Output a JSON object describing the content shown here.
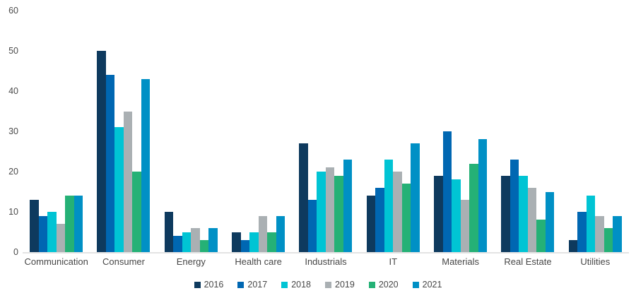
{
  "chart_data": {
    "type": "bar",
    "title": "",
    "xlabel": "",
    "ylabel": "",
    "categories": [
      "Communication",
      "Consumer",
      "Energy",
      "Health care",
      "Industrials",
      "IT",
      "Materials",
      "Real Estate",
      "Utilities"
    ],
    "series": [
      {
        "name": "2016",
        "color": "#0e3a5e",
        "values": [
          13,
          50,
          10,
          5,
          27,
          14,
          19,
          19,
          3
        ]
      },
      {
        "name": "2017",
        "color": "#0067b2",
        "values": [
          9,
          44,
          4,
          3,
          13,
          16,
          30,
          23,
          10
        ]
      },
      {
        "name": "2018",
        "color": "#00c4d4",
        "values": [
          10,
          31,
          5,
          5,
          20,
          23,
          18,
          19,
          14
        ]
      },
      {
        "name": "2019",
        "color": "#aab0b3",
        "values": [
          7,
          35,
          6,
          9,
          21,
          20,
          13,
          16,
          9
        ]
      },
      {
        "name": "2020",
        "color": "#25b176",
        "values": [
          14,
          20,
          3,
          5,
          19,
          17,
          22,
          8,
          6
        ]
      },
      {
        "name": "2021",
        "color": "#0090c5",
        "values": [
          14,
          43,
          6,
          9,
          23,
          27,
          28,
          15,
          9
        ]
      }
    ],
    "ylim": [
      0,
      60
    ],
    "yticks": [
      0,
      10,
      20,
      30,
      40,
      50,
      60
    ],
    "grid": false,
    "legend_position": "bottom",
    "axis_line_color": "#e4e4e4",
    "tick_label_color": "#4a4a4a"
  }
}
